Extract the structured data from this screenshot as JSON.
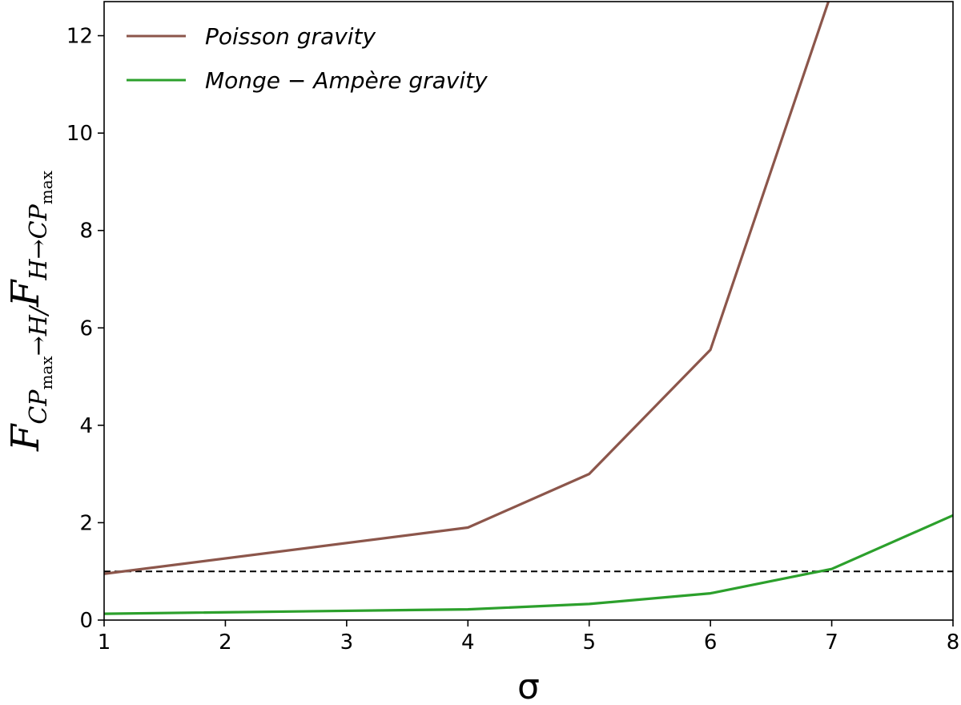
{
  "chart_data": {
    "type": "line",
    "xlabel": "σ",
    "ylabel": {
      "F1": "F",
      "CP1": "CP",
      "max1": "max",
      "arrowH": "→H/",
      "F2": "F",
      "H": "H",
      "arrow2": "→",
      "CP2": "CP",
      "max2": "max"
    },
    "xlim": [
      1,
      8
    ],
    "ylim": [
      0,
      12.7
    ],
    "xticks": [
      1,
      2,
      3,
      4,
      5,
      6,
      7,
      8
    ],
    "xtick_labels": [
      "1",
      "2",
      "3",
      "4",
      "5",
      "6",
      "7",
      "8"
    ],
    "yticks": [
      0,
      2,
      4,
      6,
      8,
      10,
      12
    ],
    "ytick_labels": [
      "0",
      "2",
      "4",
      "6",
      "8",
      "10",
      "12"
    ],
    "grid": false,
    "legend_position": "top-left",
    "series": [
      {
        "name": "Poisson gravity",
        "color": "#8c564b",
        "x": [
          1,
          4,
          5,
          6,
          7
        ],
        "y": [
          0.95,
          1.9,
          3.0,
          5.55,
          12.9
        ]
      },
      {
        "name": "Monge − Ampère gravity",
        "color": "#2ca02c",
        "x": [
          1,
          4,
          5,
          6,
          7,
          8
        ],
        "y": [
          0.13,
          0.22,
          0.33,
          0.55,
          1.05,
          2.15
        ]
      }
    ],
    "reference_line": {
      "y": 1.0,
      "style": "dashed",
      "color": "#000000"
    }
  }
}
